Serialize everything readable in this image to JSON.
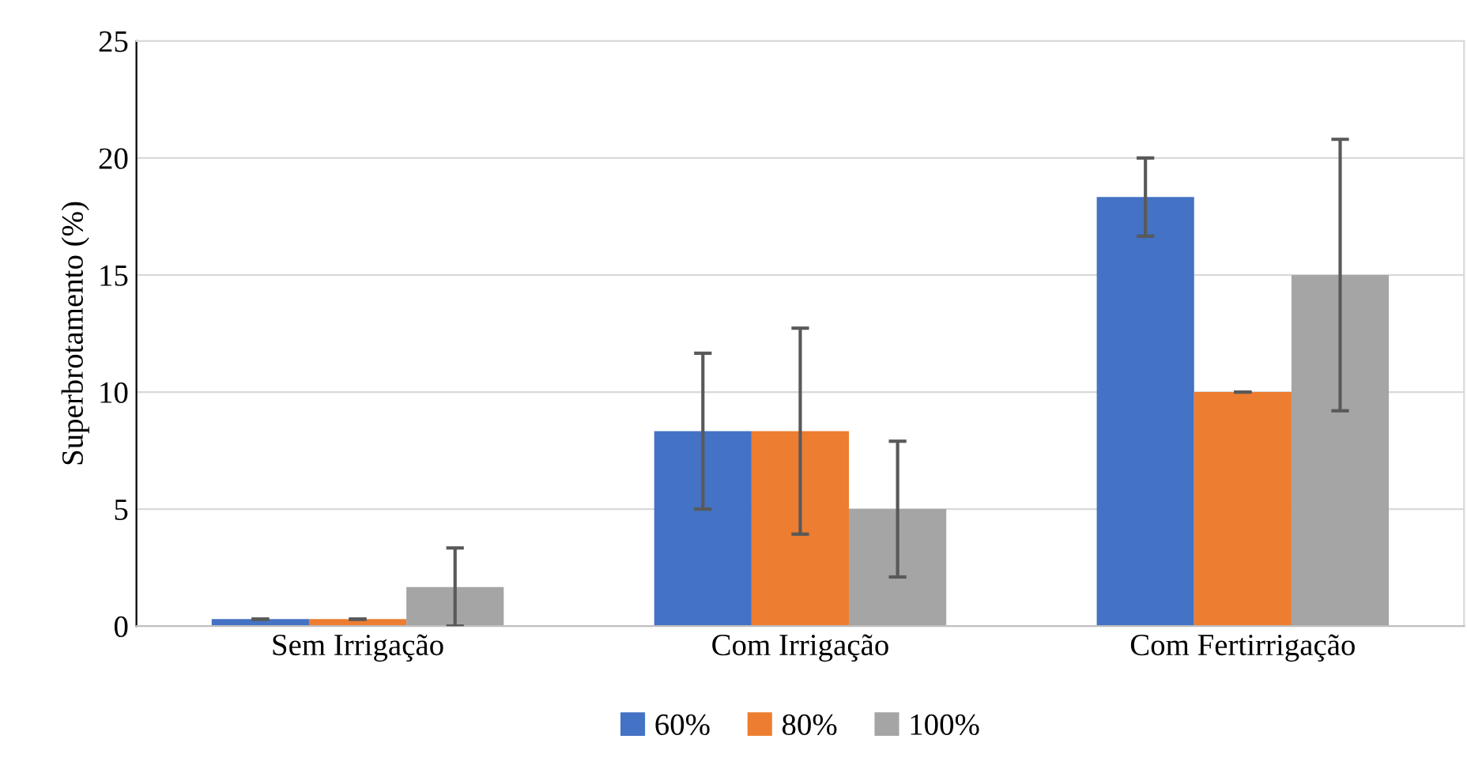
{
  "chart_data": {
    "type": "bar",
    "ylabel": "Superbrotamento (%)",
    "categories": [
      "Sem Irrigação",
      "Com Irrigação",
      "Com Fertirrigação"
    ],
    "series": [
      {
        "name": "60%",
        "color": "#4472c4",
        "values": [
          0.3,
          8.33,
          18.33
        ],
        "errors": [
          0,
          3.33,
          1.67
        ]
      },
      {
        "name": "80%",
        "color": "#ed7d31",
        "values": [
          0.3,
          8.33,
          10
        ],
        "errors": [
          0,
          4.4,
          0
        ]
      },
      {
        "name": "100%",
        "color": "#a5a5a5",
        "values": [
          1.67,
          5,
          15
        ],
        "errors": [
          1.67,
          2.9,
          5.8
        ]
      }
    ],
    "ylim": [
      0,
      25
    ],
    "yticks": [
      0,
      5,
      10,
      15,
      20,
      25
    ],
    "grid": "y",
    "legend": "bottom"
  }
}
